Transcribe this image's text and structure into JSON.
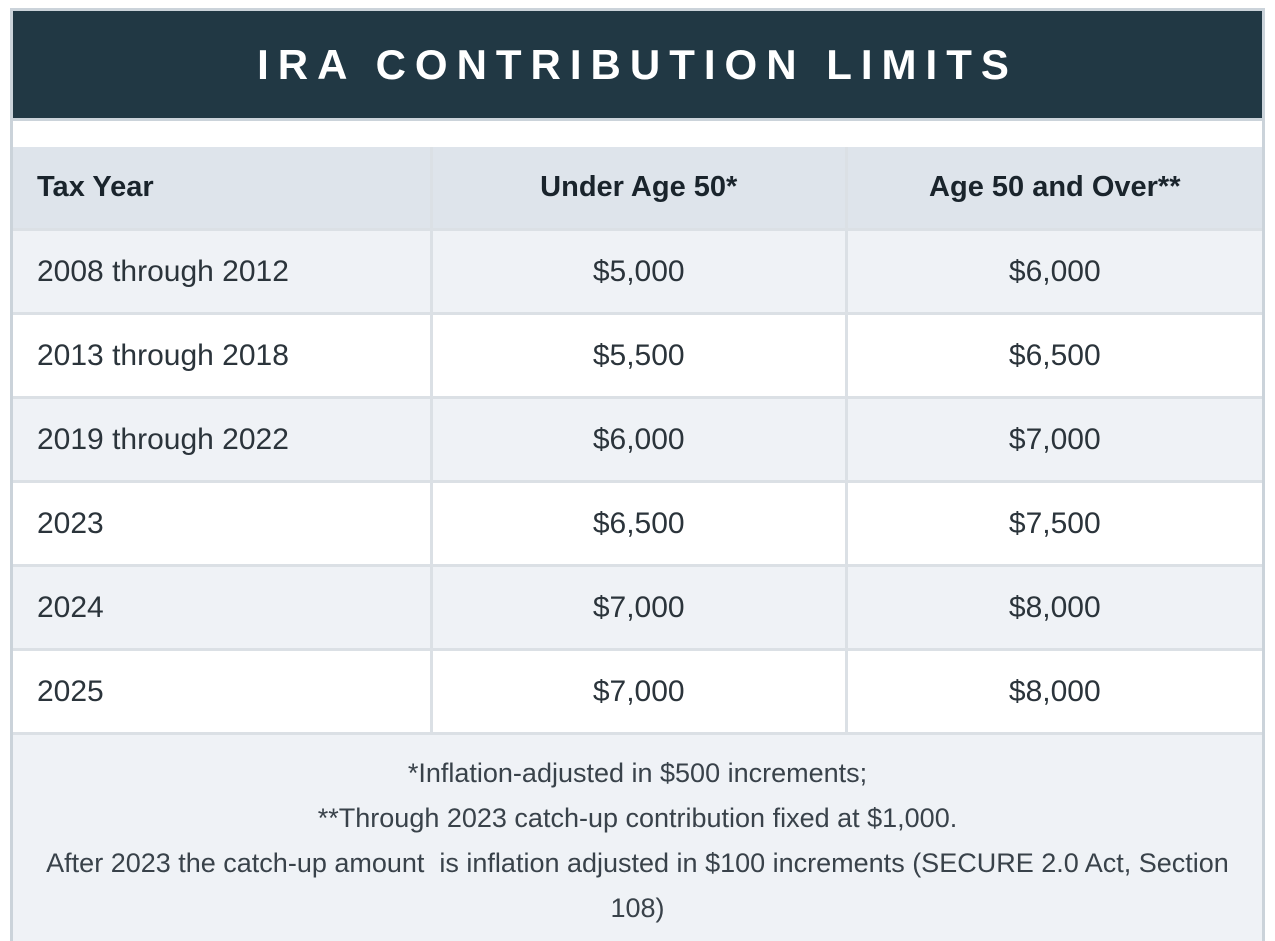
{
  "chart_data": {
    "type": "table",
    "title": "IRA CONTRIBUTION LIMITS",
    "columns": [
      "Tax Year",
      "Under Age 50*",
      "Age 50 and Over**"
    ],
    "rows": [
      [
        "2008 through 2012",
        "$5,000",
        "$6,000"
      ],
      [
        "2013 through 2018",
        "$5,500",
        "$6,500"
      ],
      [
        "2019 through 2022",
        "$6,000",
        "$7,000"
      ],
      [
        "2023",
        "$6,500",
        "$7,500"
      ],
      [
        "2024",
        "$7,000",
        "$8,000"
      ],
      [
        "2025",
        "$7,000",
        "$8,000"
      ]
    ],
    "footnotes": [
      "*Inflation-adjusted in $500 increments;",
      "**Through 2023 catch-up contribution fixed at $1,000.",
      "After 2023 the catch-up amount  is inflation adjusted in $100 increments (SECURE 2.0 Act, Section 108)"
    ],
    "layout_hints": {
      "row_striping": "odd rows and footnotes shaded, even rows white",
      "column_alignment": [
        "left",
        "center",
        "center"
      ]
    }
  },
  "colors": {
    "brand_bg": "#213844",
    "brand_text": "#ffffff",
    "table_header_bg": "#dee4eb",
    "stripe_bg": "#eff2f6",
    "cell_border": "#dbe0e5",
    "outer_border": "#cbd3da"
  }
}
